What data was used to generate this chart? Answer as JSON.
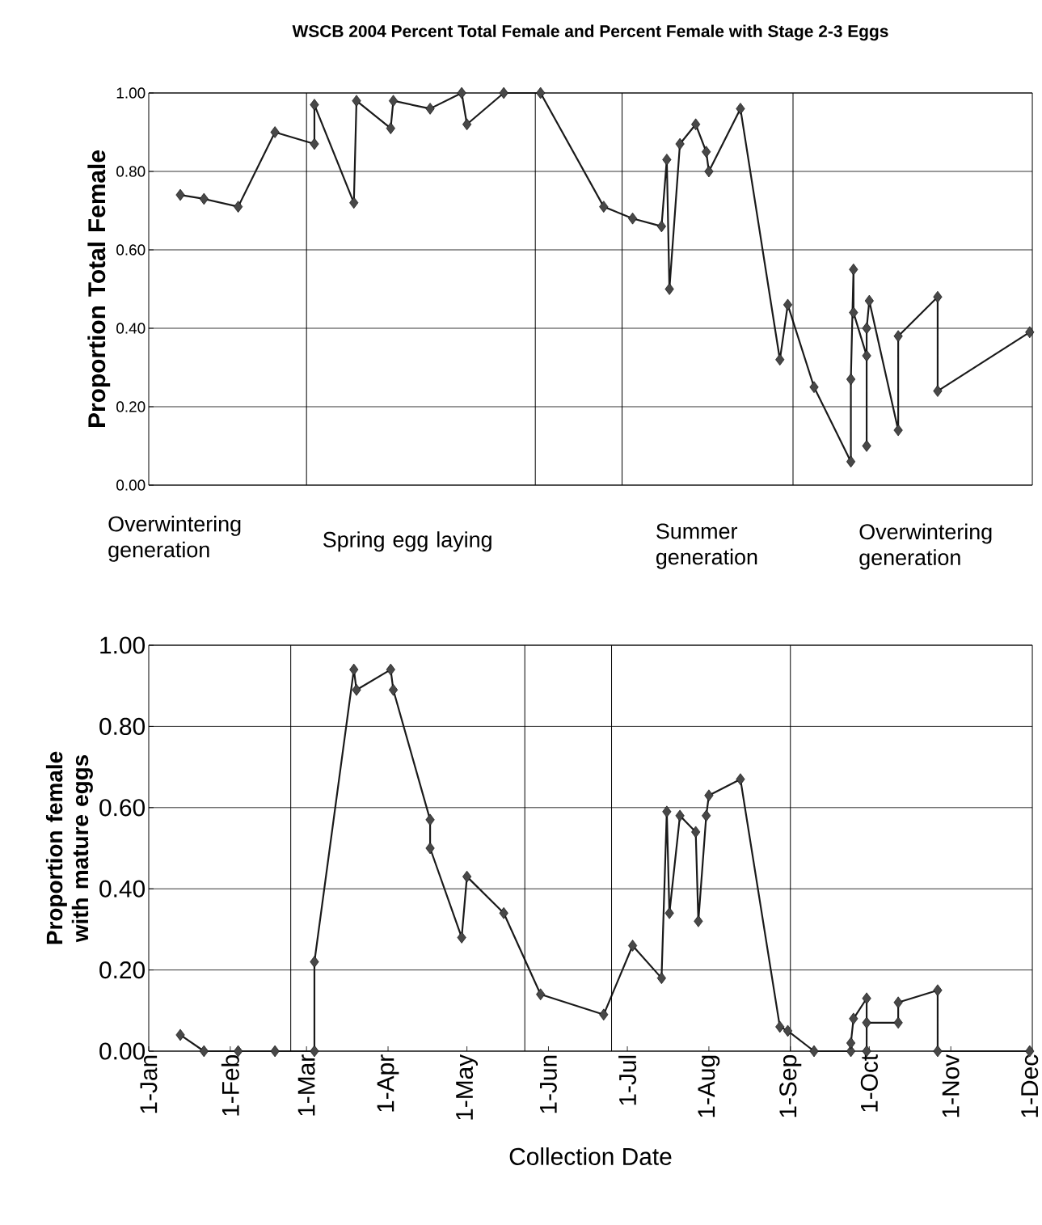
{
  "chart_data": [
    {
      "type": "line",
      "title": "WSCB 2004 Percent Total Female and Percent Female with Stage 2-3 Eggs",
      "ylabel": "Proportion Total Female",
      "annotations": [
        "Overwintering generation",
        "Spring egg laying",
        "Summer generation",
        "Overwintering generation"
      ],
      "x": [
        "2004-01-13",
        "2004-01-22",
        "2004-02-04",
        "2004-02-18",
        "2004-03-04",
        "2004-03-04",
        "2004-03-19",
        "2004-03-20",
        "2004-04-02",
        "2004-04-03",
        "2004-04-17",
        "2004-04-29",
        "2004-05-01",
        "2004-05-15",
        "2004-05-29",
        "2004-06-22",
        "2004-07-03",
        "2004-07-14",
        "2004-07-16",
        "2004-07-17",
        "2004-07-21",
        "2004-07-27",
        "2004-07-31",
        "2004-08-01",
        "2004-08-13",
        "2004-08-28",
        "2004-08-31",
        "2004-09-10",
        "2004-09-24",
        "2004-09-24",
        "2004-09-25",
        "2004-09-25",
        "2004-09-30",
        "2004-09-30",
        "2004-09-30",
        "2004-10-01",
        "2004-10-12",
        "2004-10-12",
        "2004-10-27",
        "2004-10-27",
        "2004-12-01"
      ],
      "series": [
        {
          "color": "#1a1a1a",
          "values": [
            0.74,
            0.73,
            0.71,
            0.9,
            0.87,
            0.97,
            0.72,
            0.98,
            0.91,
            0.98,
            0.96,
            1.0,
            0.92,
            1.0,
            1.0,
            0.71,
            0.68,
            0.66,
            0.83,
            0.5,
            0.87,
            0.92,
            0.85,
            0.8,
            0.96,
            0.32,
            0.46,
            0.25,
            0.06,
            0.27,
            0.55,
            0.44,
            0.33,
            0.1,
            0.4,
            0.47,
            0.14,
            0.38,
            0.48,
            0.24,
            0.39
          ]
        }
      ],
      "xlim": [
        "2004-01-01",
        "2004-12-02"
      ],
      "ylim": [
        0,
        1
      ],
      "yticks": [
        {
          "value": 0,
          "label": "0.00"
        },
        {
          "value": 0.2,
          "label": "0.20"
        },
        {
          "value": 0.4,
          "label": "0.40"
        },
        {
          "value": 0.6,
          "label": "0.60"
        },
        {
          "value": 0.8,
          "label": "0.80"
        },
        {
          "value": 1,
          "label": "1.00"
        }
      ],
      "ref_lines": [
        {
          "axis": "x",
          "value": "2004-03-01",
          "color": "#000000"
        },
        {
          "axis": "x",
          "value": "2004-05-27",
          "color": "#000000"
        },
        {
          "axis": "x",
          "value": "2004-06-29",
          "color": "#000000"
        },
        {
          "axis": "x",
          "value": "2004-09-02",
          "color": "#000000"
        }
      ],
      "grid": "y",
      "marker": "diamond",
      "line_style": "solid",
      "tick_labels": "y"
    },
    {
      "type": "line",
      "xlabel": "Collection Date",
      "ylabel": "Proportion female with mature eggs",
      "x": [
        "2004-01-13",
        "2004-01-22",
        "2004-02-04",
        "2004-02-18",
        "2004-03-04",
        "2004-03-04",
        "2004-03-19",
        "2004-03-20",
        "2004-04-02",
        "2004-04-03",
        "2004-04-17",
        "2004-04-17",
        "2004-04-29",
        "2004-05-01",
        "2004-05-15",
        "2004-05-29",
        "2004-06-22",
        "2004-07-03",
        "2004-07-14",
        "2004-07-16",
        "2004-07-17",
        "2004-07-21",
        "2004-07-27",
        "2004-07-28",
        "2004-07-31",
        "2004-08-01",
        "2004-08-13",
        "2004-08-28",
        "2004-08-31",
        "2004-09-10",
        "2004-09-24",
        "2004-09-24",
        "2004-09-25",
        "2004-09-30",
        "2004-09-30",
        "2004-09-30",
        "2004-10-12",
        "2004-10-12",
        "2004-10-27",
        "2004-10-27",
        "2004-12-01"
      ],
      "series": [
        {
          "color": "#1a1a1a",
          "values": [
            0.04,
            0,
            0,
            0,
            0,
            0.22,
            0.94,
            0.89,
            0.94,
            0.89,
            0.57,
            0.5,
            0.28,
            0.43,
            0.34,
            0.14,
            0.09,
            0.26,
            0.18,
            0.59,
            0.34,
            0.58,
            0.54,
            0.32,
            0.58,
            0.63,
            0.67,
            0.06,
            0.05,
            0,
            0,
            0.02,
            0.08,
            0.13,
            0,
            0.07,
            0.07,
            0.12,
            0.15,
            0,
            0
          ]
        }
      ],
      "xlim": [
        "2004-01-01",
        "2004-12-02"
      ],
      "ylim": [
        0,
        1
      ],
      "xticks": [
        {
          "value": "2004-01-01",
          "label": "1-Jan"
        },
        {
          "value": "2004-02-01",
          "label": "1-Feb"
        },
        {
          "value": "2004-03-01",
          "label": "1-Mar"
        },
        {
          "value": "2004-04-01",
          "label": "1-Apr"
        },
        {
          "value": "2004-05-01",
          "label": "1-May"
        },
        {
          "value": "2004-06-01",
          "label": "1-Jun"
        },
        {
          "value": "2004-07-01",
          "label": "1-Jul"
        },
        {
          "value": "2004-08-01",
          "label": "1-Aug"
        },
        {
          "value": "2004-09-01",
          "label": "1-Sep"
        },
        {
          "value": "2004-10-01",
          "label": "1-Oct"
        },
        {
          "value": "2004-11-01",
          "label": "1-Nov"
        },
        {
          "value": "2004-12-01",
          "label": "1-Dec"
        }
      ],
      "yticks": [
        {
          "value": 0,
          "label": "0.00"
        },
        {
          "value": 0.2,
          "label": "0.20"
        },
        {
          "value": 0.4,
          "label": "0.40"
        },
        {
          "value": 0.6,
          "label": "0.60"
        },
        {
          "value": 0.8,
          "label": "0.80"
        },
        {
          "value": 1,
          "label": "1.00"
        }
      ],
      "ref_lines": [
        {
          "axis": "x",
          "value": "2004-02-24",
          "color": "#000000"
        },
        {
          "axis": "x",
          "value": "2004-05-23",
          "color": "#000000"
        },
        {
          "axis": "x",
          "value": "2004-06-25",
          "color": "#000000"
        },
        {
          "axis": "x",
          "value": "2004-09-01",
          "color": "#000000"
        }
      ],
      "grid": "y",
      "marker": "diamond",
      "line_style": "solid"
    }
  ]
}
